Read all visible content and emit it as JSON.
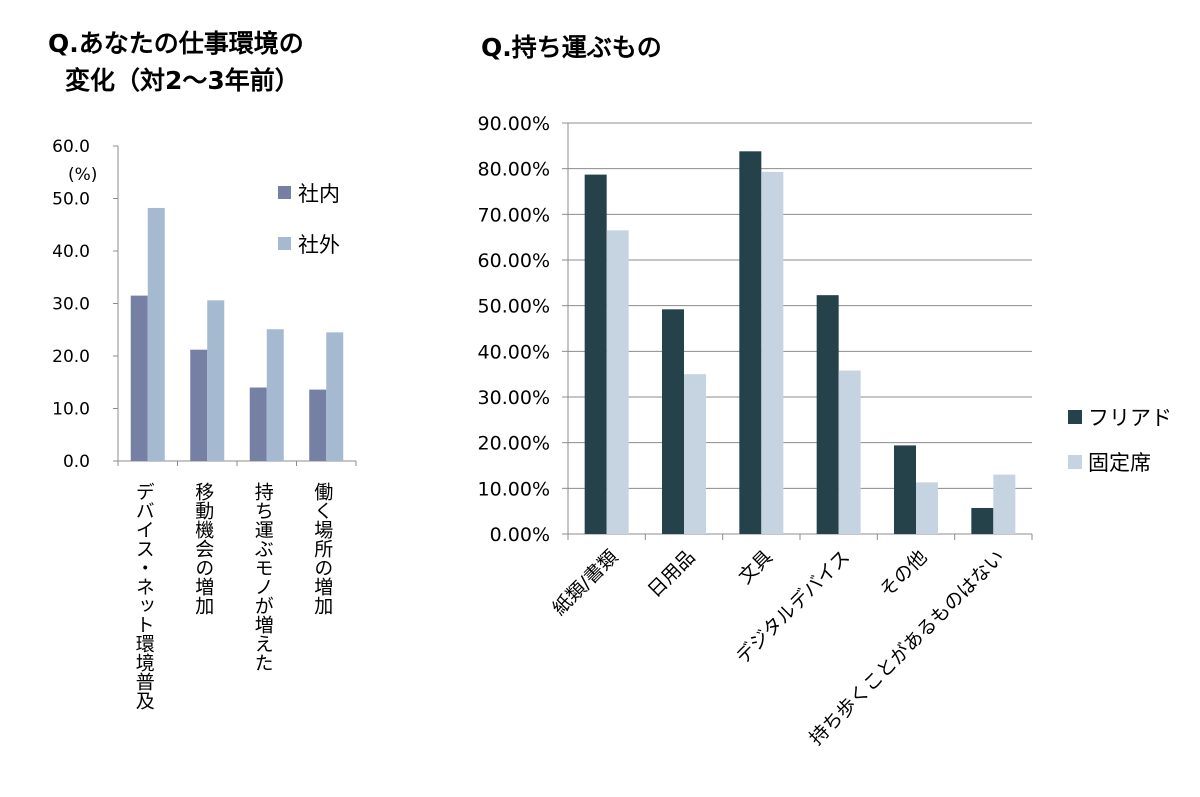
{
  "titles": {
    "left_line1": "Q.あなたの仕事環境の",
    "left_line2": "変化（対2～3年前）",
    "right": "Q.持ち運ぶもの"
  },
  "chart_data": [
    {
      "type": "bar",
      "title": "Q.あなたの仕事環境の変化（対2～3年前）",
      "unit_label": "(%)",
      "categories": [
        "デバイス・ネット環境普及",
        "移動機会の増加",
        "持ち運ぶモノが増えた",
        "働く場所の増加"
      ],
      "series": [
        {
          "name": "社内",
          "color": "#7580a4",
          "values": [
            31.5,
            21.2,
            14.0,
            13.6
          ]
        },
        {
          "name": "社外",
          "color": "#a5bad1",
          "values": [
            48.2,
            30.6,
            25.1,
            24.5
          ]
        }
      ],
      "yticks": [
        "0.0",
        "10.0",
        "20.0",
        "30.0",
        "40.0",
        "50.0",
        "60.0"
      ],
      "ylim": [
        0,
        60
      ],
      "grid": false,
      "legend": "top-right",
      "category_labels": "vertical"
    },
    {
      "type": "bar",
      "title": "Q.持ち運ぶもの",
      "categories": [
        "紙類/書類",
        "日用品",
        "文具",
        "デジタルデバイス",
        "その他",
        "持ち歩くことがあるものはない"
      ],
      "series": [
        {
          "name": "フリアド",
          "color": "#25424b",
          "values": [
            78.7,
            49.2,
            83.8,
            52.3,
            19.4,
            5.7
          ]
        },
        {
          "name": "固定席",
          "color": "#c6d4e2",
          "values": [
            66.5,
            35.0,
            79.3,
            35.8,
            11.3,
            13.0
          ]
        }
      ],
      "yticks": [
        "0.00%",
        "10.00%",
        "20.00%",
        "30.00%",
        "40.00%",
        "50.00%",
        "60.00%",
        "70.00%",
        "80.00%",
        "90.00%"
      ],
      "ylim": [
        0,
        90
      ],
      "grid": true,
      "legend": "right",
      "category_labels": "rotated"
    }
  ]
}
